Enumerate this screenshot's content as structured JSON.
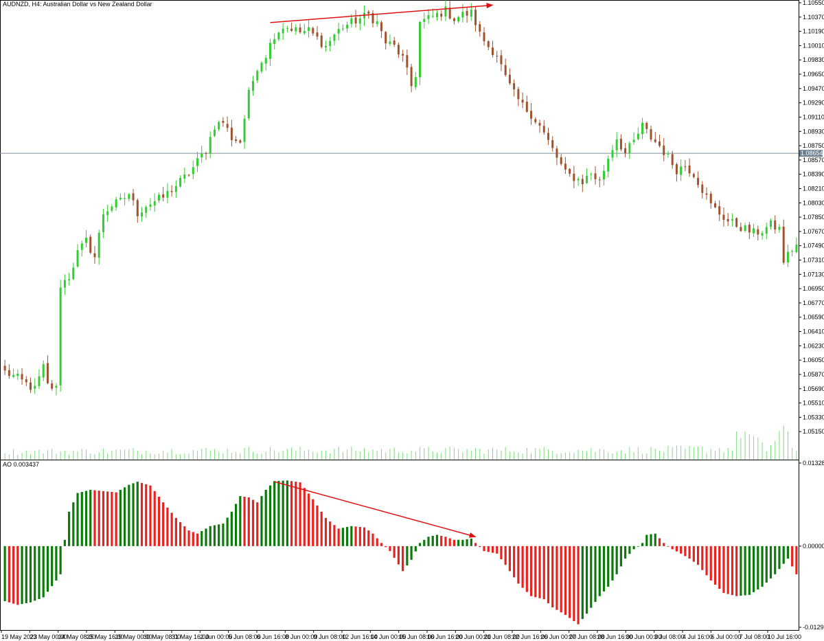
{
  "header": {
    "symbol_line": "AUDNZD, H4:  Australian Dollar vs New Zealand Dollar",
    "ao_label": "AO 0.003437"
  },
  "colors": {
    "bull_candle": "#32cd32",
    "bear_candle": "#a0522d",
    "volume": "#7fdc7f",
    "ao_up": "#0b7a0b",
    "ao_down": "#e8221e",
    "annotation": "#e01010",
    "grid": "#000000",
    "price_line": "#7f8c99",
    "price_badge": "#6c7f91"
  },
  "chart_data": [
    {
      "type": "candlestick",
      "title": "AUDNZD, H4:  Australian Dollar vs New Zealand Dollar",
      "ylim": [
        1.0497,
        1.1055
      ],
      "y_ticks": [
        "1.10550",
        "1.10370",
        "1.10190",
        "1.10010",
        "1.09830",
        "1.09650",
        "1.09470",
        "1.09290",
        "1.09110",
        "1.08930",
        "1.08750",
        "1.08570",
        "1.08390",
        "1.08210",
        "1.08030",
        "1.07850",
        "1.07670",
        "1.07490",
        "1.07310",
        "1.07130",
        "1.06950",
        "1.06770",
        "1.06590",
        "1.06410",
        "1.06230",
        "1.06050",
        "1.05870",
        "1.05690",
        "1.05510",
        "1.05330",
        "1.05150"
      ],
      "current_price": "1.08654",
      "x_ticks": [
        "19 May 2023",
        "23 May 00:00",
        "24 May 08:00",
        "25 May 16:00",
        "29 May 00:00",
        "30 May 08:00",
        "31 May 16:00",
        "2 Jun 00:00",
        "5 Jun 08:00",
        "6 Jun 16:00",
        "8 Jun 00:00",
        "9 Jun 08:00",
        "12 Jun 16:00",
        "14 Jun 00:00",
        "15 Jun 08:00",
        "16 Jun 16:00",
        "20 Jun 00:00",
        "21 Jun 08:00",
        "22 Jun 16:00",
        "26 Jun 00:00",
        "27 Jun 08:00",
        "28 Jun 16:00",
        "30 Jun 00:00",
        "3 Jul 08:00",
        "4 Jul 16:00",
        "6 Jul 00:00",
        "7 Jul 08:00",
        "10 Jul 16:00"
      ],
      "close_path": [
        [
          0,
          1.059
        ],
        [
          3,
          1.0582
        ],
        [
          5,
          1.0575
        ],
        [
          7,
          1.0568
        ],
        [
          9,
          1.0596
        ],
        [
          10,
          1.0573
        ],
        [
          12,
          1.0569
        ],
        [
          13,
          1.07
        ],
        [
          15,
          1.071
        ],
        [
          17,
          1.074
        ],
        [
          19,
          1.0755
        ],
        [
          21,
          1.0735
        ],
        [
          23,
          1.079
        ],
        [
          25,
          1.08
        ],
        [
          27,
          1.0805
        ],
        [
          29,
          1.0815
        ],
        [
          31,
          1.079
        ],
        [
          33,
          1.08
        ],
        [
          35,
          1.0805
        ],
        [
          37,
          1.081
        ],
        [
          39,
          1.082
        ],
        [
          41,
          1.083
        ],
        [
          43,
          1.084
        ],
        [
          45,
          1.0855
        ],
        [
          47,
          1.087
        ],
        [
          49,
          1.09
        ],
        [
          51,
          1.0905
        ],
        [
          53,
          1.0885
        ],
        [
          55,
          1.088
        ],
        [
          57,
          1.094
        ],
        [
          59,
          1.0975
        ],
        [
          61,
          1.099
        ],
        [
          63,
          1.1015
        ],
        [
          65,
          1.1025
        ],
        [
          67,
          1.1023
        ],
        [
          69,
          1.1018
        ],
        [
          71,
          1.102
        ],
        [
          73,
          1.101
        ],
        [
          75,
          1.1
        ],
        [
          77,
          1.1015
        ],
        [
          79,
          1.1025
        ],
        [
          81,
          1.103
        ],
        [
          83,
          1.1035
        ],
        [
          85,
          1.104
        ],
        [
          87,
          1.103
        ],
        [
          89,
          1.1005
        ],
        [
          91,
          1.1
        ],
        [
          93,
          1.0985
        ],
        [
          95,
          1.095
        ],
        [
          96,
          1.0965
        ],
        [
          97,
          1.103
        ],
        [
          99,
          1.1035
        ],
        [
          101,
          1.104
        ],
        [
          103,
          1.1045
        ],
        [
          105,
          1.1035
        ],
        [
          107,
          1.104
        ],
        [
          109,
          1.1042
        ],
        [
          110,
          1.103
        ],
        [
          111,
          1.1015
        ],
        [
          113,
          1.1
        ],
        [
          115,
          1.099
        ],
        [
          117,
          1.096
        ],
        [
          119,
          1.094
        ],
        [
          121,
          1.0925
        ],
        [
          123,
          1.0915
        ],
        [
          125,
          1.09
        ],
        [
          127,
          1.088
        ],
        [
          129,
          1.086
        ],
        [
          131,
          1.084
        ],
        [
          133,
          1.0835
        ],
        [
          135,
          1.083
        ],
        [
          137,
          1.084
        ],
        [
          139,
          1.083
        ],
        [
          141,
          1.086
        ],
        [
          143,
          1.0885
        ],
        [
          145,
          1.0865
        ],
        [
          147,
          1.088
        ],
        [
          149,
          1.09
        ],
        [
          151,
          1.0885
        ],
        [
          153,
          1.0875
        ],
        [
          155,
          1.086
        ],
        [
          157,
          1.0845
        ],
        [
          159,
          1.085
        ],
        [
          161,
          1.084
        ],
        [
          163,
          1.082
        ],
        [
          165,
          1.08
        ],
        [
          167,
          1.079
        ],
        [
          169,
          1.078
        ],
        [
          171,
          1.0775
        ],
        [
          173,
          1.077
        ],
        [
          175,
          1.0765
        ],
        [
          177,
          1.0768
        ],
        [
          179,
          1.0775
        ],
        [
          181,
          1.077
        ],
        [
          182,
          1.073
        ],
        [
          184,
          1.0745
        ],
        [
          185,
          1.075
        ]
      ],
      "volume_profile": [
        [
          0,
          10
        ],
        [
          60,
          12
        ],
        [
          113,
          12
        ],
        [
          150,
          12
        ],
        [
          170,
          14
        ],
        [
          172,
          38
        ],
        [
          178,
          12
        ],
        [
          182,
          40
        ],
        [
          184,
          12
        ],
        [
          185,
          12
        ]
      ],
      "annotation": {
        "from": [
          62,
          1.103
        ],
        "to": [
          114,
          1.1052
        ]
      }
    },
    {
      "type": "bar",
      "title": "AO 0.003437",
      "ylim": [
        -0.01298,
        0.013282
      ],
      "y_ticks": [
        "0.013282",
        "0.000000",
        "-0.012980"
      ],
      "ao_path": [
        [
          0,
          -0.0088
        ],
        [
          3,
          -0.0094
        ],
        [
          6,
          -0.009
        ],
        [
          9,
          -0.0082
        ],
        [
          12,
          -0.0055
        ],
        [
          13,
          -0.0045
        ],
        [
          14,
          0.001
        ],
        [
          15,
          0.0055
        ],
        [
          17,
          0.0085
        ],
        [
          20,
          0.009
        ],
        [
          23,
          0.0088
        ],
        [
          26,
          0.0086
        ],
        [
          29,
          0.0098
        ],
        [
          31,
          0.0103
        ],
        [
          34,
          0.0097
        ],
        [
          37,
          0.007
        ],
        [
          40,
          0.0045
        ],
        [
          43,
          0.0025
        ],
        [
          45,
          0.002
        ],
        [
          48,
          0.0032
        ],
        [
          51,
          0.0036
        ],
        [
          53,
          0.0055
        ],
        [
          55,
          0.008
        ],
        [
          57,
          0.0078
        ],
        [
          59,
          0.007
        ],
        [
          61,
          0.009
        ],
        [
          63,
          0.0104
        ],
        [
          66,
          0.0105
        ],
        [
          69,
          0.0102
        ],
        [
          72,
          0.0075
        ],
        [
          75,
          0.0045
        ],
        [
          78,
          0.0028
        ],
        [
          81,
          0.0032
        ],
        [
          84,
          0.003
        ],
        [
          86,
          0.002
        ],
        [
          88,
          0.0005
        ],
        [
          90,
          -0.0008
        ],
        [
          93,
          -0.004
        ],
        [
          95,
          -0.0022
        ],
        [
          97,
          0.0005
        ],
        [
          99,
          0.0015
        ],
        [
          101,
          0.0018
        ],
        [
          103,
          0.0015
        ],
        [
          105,
          0.001
        ],
        [
          107,
          0.001
        ],
        [
          109,
          0.0012
        ],
        [
          110,
          0.0005
        ],
        [
          112,
          -0.0008
        ],
        [
          115,
          -0.0012
        ],
        [
          117,
          -0.003
        ],
        [
          120,
          -0.006
        ],
        [
          123,
          -0.008
        ],
        [
          126,
          -0.0085
        ],
        [
          128,
          -0.0098
        ],
        [
          131,
          -0.011
        ],
        [
          134,
          -0.0125
        ],
        [
          136,
          -0.0108
        ],
        [
          139,
          -0.008
        ],
        [
          141,
          -0.0065
        ],
        [
          143,
          -0.0045
        ],
        [
          145,
          -0.002
        ],
        [
          147,
          -0.0005
        ],
        [
          149,
          0.0005
        ],
        [
          150,
          0.0018
        ],
        [
          152,
          0.002
        ],
        [
          154,
          0.0005
        ],
        [
          156,
          -0.0005
        ],
        [
          158,
          -0.0012
        ],
        [
          160,
          -0.002
        ],
        [
          162,
          -0.003
        ],
        [
          165,
          -0.0055
        ],
        [
          168,
          -0.0075
        ],
        [
          171,
          -0.008
        ],
        [
          174,
          -0.0078
        ],
        [
          177,
          -0.0065
        ],
        [
          180,
          -0.0045
        ],
        [
          183,
          -0.002
        ],
        [
          185,
          -0.0045
        ]
      ],
      "annotation": {
        "from": [
          63,
          0.0103
        ],
        "to": [
          110,
          0.0015
        ]
      }
    }
  ]
}
